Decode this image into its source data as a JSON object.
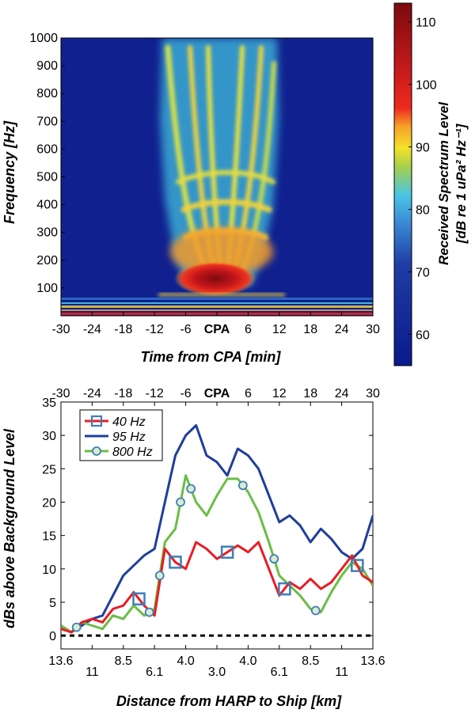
{
  "chart_data": [
    {
      "type": "heatmap",
      "title": "",
      "xlabel": "Time from CPA [min]",
      "ylabel": "Frequency [Hz]",
      "xlim": [
        -30,
        30
      ],
      "ylim": [
        0,
        1000
      ],
      "x_ticks": [
        "-30",
        "-24",
        "-18",
        "-12",
        "-6",
        "CPA",
        "6",
        "12",
        "18",
        "24",
        "30"
      ],
      "y_ticks": [
        "100",
        "200",
        "300",
        "400",
        "500",
        "600",
        "700",
        "800",
        "900",
        "1000"
      ],
      "y_tick_values": [
        100,
        200,
        300,
        400,
        500,
        600,
        700,
        800,
        900,
        1000
      ],
      "colorbar": {
        "label_line1": "Received Spectrum Level",
        "label_line2": "[dB re 1 uPa² Hz⁻¹]",
        "range": [
          55,
          113
        ],
        "ticks": [
          "60",
          "70",
          "80",
          "90",
          "100",
          "110"
        ],
        "tick_values": [
          60,
          70,
          80,
          90,
          100,
          110
        ]
      }
    },
    {
      "type": "line",
      "title": "",
      "xlabel": "Distance from HARP to Ship [km]",
      "ylabel": "dBs above Background Level",
      "top_xlabel_ticks": [
        "-30",
        "-24",
        "-18",
        "-12",
        "-6",
        "CPA",
        "6",
        "12",
        "18",
        "24",
        "30"
      ],
      "top_tick_values": [
        -30,
        -24,
        -18,
        -12,
        -6,
        0,
        6,
        12,
        18,
        24,
        30
      ],
      "bottom_ticks": [
        "13.6",
        "11",
        "8.5",
        "6.1",
        "4.0",
        "3.0",
        "4.0",
        "6.1",
        "8.5",
        "11",
        "13.6"
      ],
      "bottom_tick_values": [
        -30,
        -24,
        -18,
        -12,
        -6,
        0,
        6,
        12,
        18,
        24,
        30
      ],
      "y_ticks": [
        "0",
        "5",
        "10",
        "15",
        "20",
        "25",
        "30",
        "35"
      ],
      "y_tick_values": [
        0,
        5,
        10,
        15,
        20,
        25,
        30,
        35
      ],
      "xlim": [
        -30,
        30
      ],
      "ylim": [
        -2,
        35
      ],
      "reference_line": 0,
      "x": [
        -30,
        -28,
        -26,
        -24,
        -22,
        -20,
        -18,
        -16,
        -14,
        -12,
        -10,
        -8,
        -6,
        -4,
        -2,
        0,
        2,
        4,
        6,
        8,
        10,
        12,
        14,
        16,
        18,
        20,
        22,
        24,
        26,
        28,
        30
      ],
      "series": [
        {
          "name": "40 Hz",
          "color": "#e81d25",
          "marker": "square",
          "values": [
            1.0,
            0.5,
            2.0,
            2.5,
            2.0,
            4.0,
            4.5,
            6.5,
            4.5,
            3.0,
            13.0,
            11.0,
            10.0,
            14.0,
            13.0,
            11.5,
            12.5,
            13.5,
            12.5,
            14.0,
            10.0,
            6.0,
            8.0,
            7.0,
            8.5,
            7.0,
            8.0,
            10.0,
            12.0,
            9.0,
            8.0
          ],
          "markers_at": [
            -15,
            -8,
            2,
            13,
            27
          ]
        },
        {
          "name": "95 Hz",
          "color": "#1f3e9c",
          "marker": "none",
          "values": [
            1.5,
            0.5,
            1.5,
            2.5,
            3.0,
            6.0,
            9.0,
            10.5,
            12.0,
            13.0,
            20.0,
            27.0,
            30.0,
            31.5,
            27.0,
            26.0,
            24.0,
            28.0,
            27.0,
            25.0,
            21.0,
            17.0,
            18.0,
            16.5,
            14.0,
            16.0,
            14.5,
            12.5,
            11.5,
            13.0,
            18.0
          ],
          "markers_at": []
        },
        {
          "name": "800 Hz",
          "color": "#6bbd45",
          "marker": "circle",
          "values": [
            1.5,
            0.5,
            2.0,
            1.5,
            1.0,
            3.0,
            2.5,
            4.5,
            3.0,
            4.0,
            14.0,
            16.0,
            24.0,
            20.0,
            18.0,
            21.0,
            23.5,
            23.5,
            21.5,
            18.5,
            14.0,
            9.0,
            7.5,
            6.0,
            4.0,
            3.5,
            6.5,
            9.0,
            11.0,
            10.0,
            7.5
          ],
          "markers_at": [
            -27,
            -13,
            -11,
            -7,
            -5,
            5,
            11,
            19
          ]
        }
      ]
    }
  ],
  "colors": {
    "background_field": "#10218f",
    "axis": "#000000",
    "legend_border": "#000000"
  }
}
